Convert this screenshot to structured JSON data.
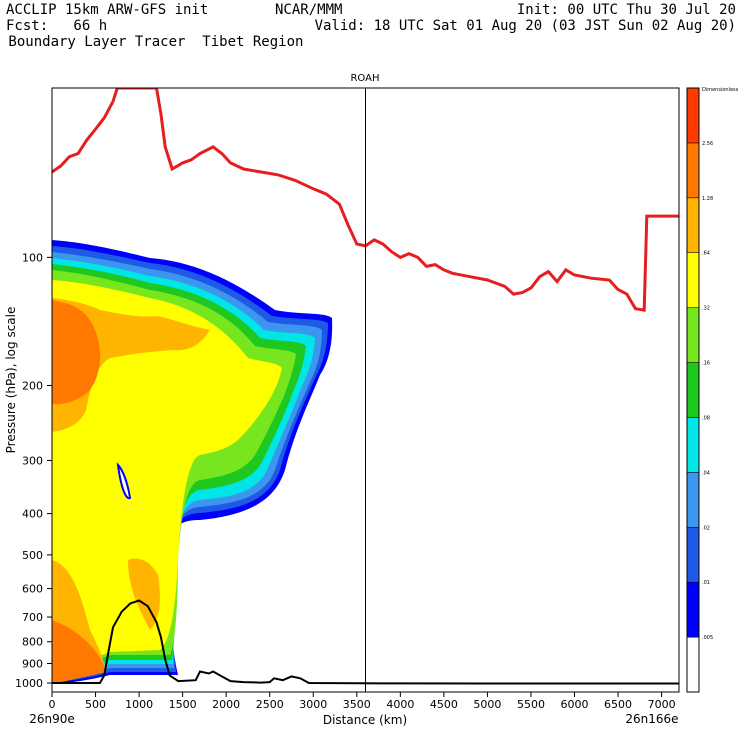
{
  "header": {
    "line1_left": "ACCLIP 15km ARW-GFS init",
    "line1_mid": "NCAR/MMM",
    "line1_right": "Init: 00 UTC Thu 30 Jul 20",
    "line2_left": "Fcst:   66 h",
    "line2_right": "Valid: 18 UTC Sat 01 Aug 20 (03 JST Sun 02 Aug 20)",
    "line3_left": " Boundary Layer Tracer  Tibet Region"
  },
  "chart_data": {
    "type": "heatmap",
    "title": "ROAH",
    "xlabel": "Distance (km)",
    "ylabel": "Pressure (hPa), log scale",
    "xlim": [
      0,
      7200
    ],
    "ylim_hpa": [
      1050,
      40
    ],
    "y_scale": "log",
    "x_ticks": [
      "0",
      "500",
      "1000",
      "1500",
      "2000",
      "2500",
      "3000",
      "3500",
      "4000",
      "4500",
      "5000",
      "5500",
      "6000",
      "6500",
      "7000"
    ],
    "y_ticks": [
      "100",
      "200",
      "300",
      "400",
      "500",
      "600",
      "700",
      "800",
      "900",
      "1000"
    ],
    "endpoint_left": "26n90e",
    "endpoint_right": "26n166e",
    "vertical_marker_km": 3600,
    "colorbar": {
      "title": "Dimensionless",
      "levels": [
        ".005",
        ".01",
        ".02",
        ".04",
        ".08",
        ".16",
        ".32",
        ".64",
        "1.28",
        "2.56"
      ],
      "colors": [
        "#ffffff",
        "#0000ff",
        "#1e5ae6",
        "#3c96f0",
        "#00e6e6",
        "#1ec81e",
        "#78e61e",
        "#ffff00",
        "#ffb400",
        "#ff7800",
        "#ff3c00"
      ]
    },
    "series": [
      {
        "color": "#e61e1e",
        "points": [
          [
            0,
            63
          ],
          [
            100,
            61
          ],
          [
            200,
            58
          ],
          [
            300,
            57
          ],
          [
            400,
            53
          ],
          [
            500,
            50
          ],
          [
            600,
            47
          ],
          [
            700,
            43
          ],
          [
            750,
            40
          ],
          [
            1200,
            40
          ],
          [
            1250,
            46
          ],
          [
            1300,
            55
          ],
          [
            1380,
            62
          ],
          [
            1500,
            60
          ],
          [
            1600,
            59
          ],
          [
            1700,
            57
          ],
          [
            1850,
            55
          ],
          [
            1950,
            57
          ],
          [
            2050,
            60
          ],
          [
            2200,
            62
          ],
          [
            2400,
            63
          ],
          [
            2600,
            64
          ],
          [
            2800,
            66
          ],
          [
            3000,
            69
          ],
          [
            3150,
            71
          ],
          [
            3300,
            75
          ],
          [
            3400,
            84
          ],
          [
            3500,
            93
          ],
          [
            3600,
            94
          ],
          [
            3700,
            91
          ],
          [
            3800,
            93
          ],
          [
            3900,
            97
          ],
          [
            4000,
            100
          ],
          [
            4100,
            98
          ],
          [
            4200,
            100
          ],
          [
            4300,
            105
          ],
          [
            4400,
            104
          ],
          [
            4500,
            107
          ],
          [
            4600,
            109
          ],
          [
            4800,
            111
          ],
          [
            5000,
            113
          ],
          [
            5200,
            117
          ],
          [
            5300,
            122
          ],
          [
            5400,
            121
          ],
          [
            5500,
            118
          ],
          [
            5600,
            111
          ],
          [
            5700,
            108
          ],
          [
            5800,
            114
          ],
          [
            5900,
            107
          ],
          [
            6000,
            110
          ],
          [
            6200,
            112
          ],
          [
            6400,
            113
          ],
          [
            6500,
            119
          ],
          [
            6600,
            122
          ],
          [
            6700,
            132
          ],
          [
            6800,
            133
          ],
          [
            6830,
            80
          ],
          [
            7200,
            80
          ]
        ]
      },
      {
        "color": "#000000",
        "points": [
          [
            0,
            1000
          ],
          [
            550,
            1000
          ],
          [
            600,
            960
          ],
          [
            650,
            840
          ],
          [
            700,
            740
          ],
          [
            800,
            680
          ],
          [
            900,
            650
          ],
          [
            1000,
            640
          ],
          [
            1100,
            660
          ],
          [
            1200,
            720
          ],
          [
            1250,
            780
          ],
          [
            1300,
            880
          ],
          [
            1350,
            960
          ],
          [
            1450,
            990
          ],
          [
            1650,
            985
          ],
          [
            1700,
            940
          ],
          [
            1800,
            950
          ],
          [
            1850,
            940
          ],
          [
            1950,
            965
          ],
          [
            2050,
            990
          ],
          [
            2200,
            995
          ],
          [
            2400,
            998
          ],
          [
            2500,
            995
          ],
          [
            2550,
            975
          ],
          [
            2650,
            985
          ],
          [
            2750,
            965
          ],
          [
            2850,
            975
          ],
          [
            2950,
            1000
          ],
          [
            4000,
            1002
          ],
          [
            5000,
            1003
          ],
          [
            6000,
            1003
          ],
          [
            7200,
            1003
          ]
        ]
      }
    ]
  }
}
